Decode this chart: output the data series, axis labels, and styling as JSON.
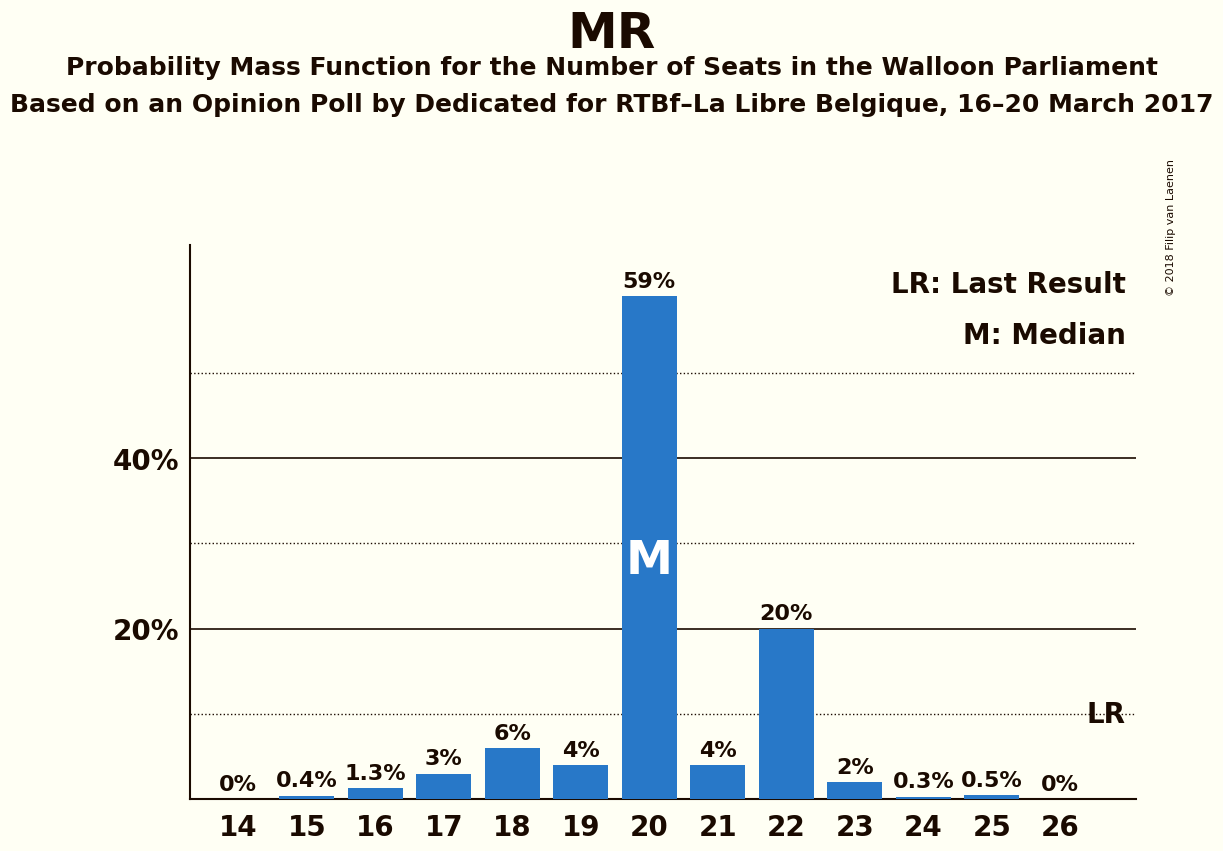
{
  "title": "MR",
  "subtitle1": "Probability Mass Function for the Number of Seats in the Walloon Parliament",
  "subtitle2": "Based on an Opinion Poll by Dedicated for RTBf–La Libre Belgique, 16–20 March 2017",
  "copyright": "© 2018 Filip van Laenen",
  "seats": [
    14,
    15,
    16,
    17,
    18,
    19,
    20,
    21,
    22,
    23,
    24,
    25,
    26
  ],
  "probabilities": [
    0.0,
    0.4,
    1.3,
    3.0,
    6.0,
    4.0,
    59.0,
    4.0,
    20.0,
    2.0,
    0.3,
    0.5,
    0.0
  ],
  "labels": [
    "0%",
    "0.4%",
    "1.3%",
    "3%",
    "6%",
    "4%",
    "59%",
    "4%",
    "20%",
    "2%",
    "0.3%",
    "0.5%",
    "0%"
  ],
  "bar_color": "#2878c8",
  "background_color": "#fffff4",
  "median_seat": 20,
  "lr_value": 10.0,
  "ylim": [
    0,
    65
  ],
  "yticks_solid": [
    20,
    40
  ],
  "yticks_dotted": [
    10,
    30,
    50
  ],
  "title_fontsize": 36,
  "subtitle_fontsize": 18,
  "label_fontsize": 16,
  "tick_fontsize": 20,
  "axis_color": "#1a0a00",
  "legend_fontsize": 20,
  "m_fontsize": 34
}
